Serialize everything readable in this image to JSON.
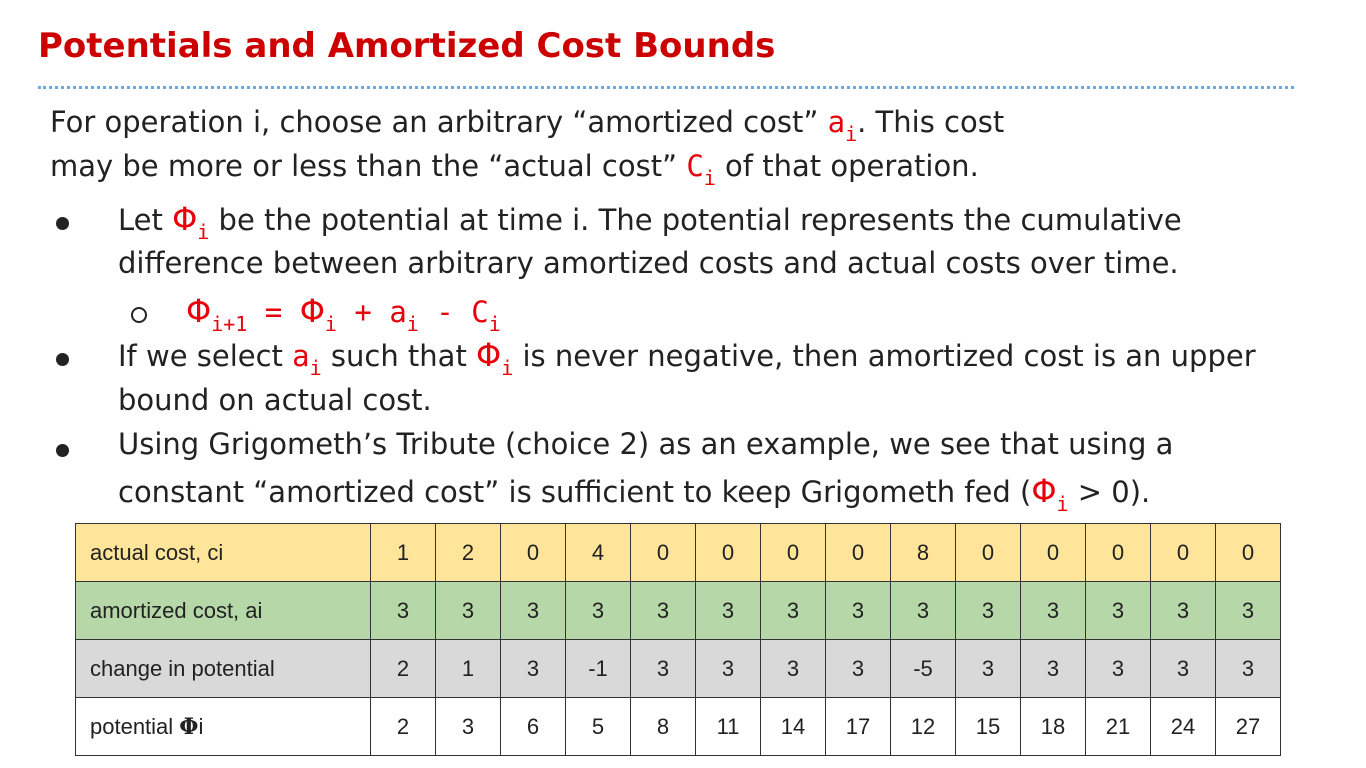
{
  "slide": {
    "title": "Potentials and Amortized Cost Bounds"
  },
  "intro": {
    "line1_pre": "For operation i, choose an arbitrary “amortized cost” ",
    "a_sym": "a",
    "sub_i": "i",
    "line1_post": ". This cost",
    "line2_pre": "may be more or less than the “actual cost” ",
    "c_sym": "C",
    "line2_post": " of that operation."
  },
  "bullets": {
    "b1_pre": "Let ",
    "phi_sym": "Φ",
    "b1_post": " be the potential at time i. The potential represents the cumulative",
    "b1_line2": "difference between arbitrary amortized costs and actual costs over time.",
    "formula": {
      "phi": "Φ",
      "sub_next": "i+1",
      "eq": " = ",
      "plus": " + ",
      "a": "a",
      "minus": " - ",
      "c": "C",
      "sub_i": "i"
    },
    "b2_pre": "If we select ",
    "b2_mid": " such that ",
    "b2_post": " is never negative, then amortized cost is an upper",
    "b2_line2": "bound on actual cost.",
    "b3_line1": "Using Grigometh’s Tribute (choice 2) as an example, we see that using  a",
    "b3_pre": "constant “amortized cost” is sufficient to keep Grigometh fed (",
    "b3_post": " > 0)."
  },
  "table": {
    "rows": [
      {
        "label": "actual cost, ci",
        "values": [
          "1",
          "2",
          "0",
          "4",
          "0",
          "0",
          "0",
          "0",
          "8",
          "0",
          "0",
          "0",
          "0",
          "0"
        ]
      },
      {
        "label": "amortized cost, ai",
        "values": [
          "3",
          "3",
          "3",
          "3",
          "3",
          "3",
          "3",
          "3",
          "3",
          "3",
          "3",
          "3",
          "3",
          "3"
        ]
      },
      {
        "label": "change in potential",
        "values": [
          "2",
          "1",
          "3",
          "-1",
          "3",
          "3",
          "3",
          "3",
          "-5",
          "3",
          "3",
          "3",
          "3",
          "3"
        ]
      },
      {
        "label": "potential Φi",
        "values": [
          "2",
          "3",
          "6",
          "5",
          "8",
          "11",
          "14",
          "17",
          "12",
          "15",
          "18",
          "21",
          "24",
          "27"
        ]
      }
    ]
  },
  "colors": {
    "title": "#cc0000",
    "math": "#e8000b",
    "rule": "#6fa8dc",
    "row_actual": "#ffe599",
    "row_amortized": "#b6d7a8",
    "row_change": "#d9d9d9",
    "row_potential": "#ffffff"
  }
}
